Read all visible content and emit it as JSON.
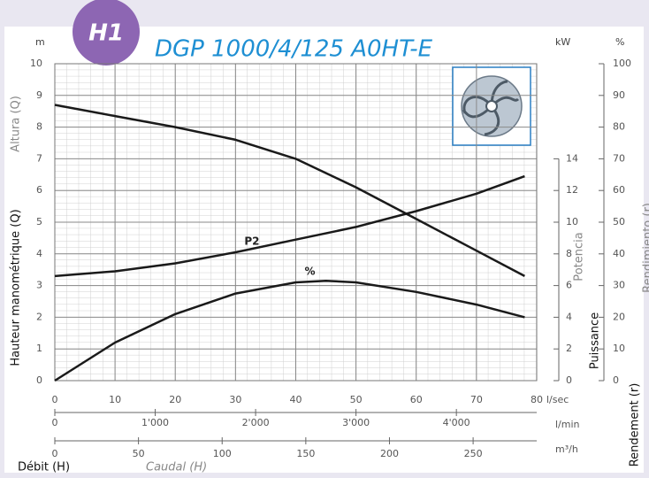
{
  "chart_data": {
    "type": "line",
    "badge": "H1",
    "title": "DGP 1000/4/125 A0HT-E",
    "xunit": "l/sec",
    "xlim": [
      0,
      80
    ],
    "xticks": [
      0,
      10,
      20,
      30,
      40,
      50,
      60,
      70,
      80
    ],
    "x2unit": "l/min",
    "x2lim": [
      0,
      4800
    ],
    "x2ticks": [
      0,
      {
        "value": 1000,
        "label": "1'000"
      },
      {
        "value": 2000,
        "label": "2'000"
      },
      {
        "value": 3000,
        "label": "3'000"
      },
      {
        "value": 4000,
        "label": "4'000"
      }
    ],
    "x3unit": "m³/h",
    "x3lim": [
      0,
      288
    ],
    "x3ticks": [
      0,
      50,
      100,
      150,
      200,
      250
    ],
    "xlabel": "Débit (H)",
    "xlabel_alt": "Caudal (H)",
    "yunit": "m",
    "ylabel": "Hauteur manométrique (Q)",
    "ylabel_alt": "Altura (Q)",
    "ylim": [
      0,
      10
    ],
    "yticks": [
      0,
      1,
      2,
      3,
      4,
      5,
      6,
      7,
      8,
      9,
      10
    ],
    "y2unit": "kW",
    "y2label": "Puissance",
    "y2label_alt": "Potencia",
    "y2lim": [
      0,
      20
    ],
    "y2ticks": [
      0,
      2,
      4,
      6,
      8,
      10,
      12,
      14
    ],
    "y3unit": "%",
    "y3label": "Rendement (r)",
    "y3label_alt": "Rendimiento (r)",
    "y3lim": [
      0,
      100
    ],
    "y3ticks": [
      0,
      10,
      20,
      30,
      40,
      50,
      60,
      70,
      80,
      90,
      100
    ],
    "grid": true,
    "series": [
      {
        "axis": "y",
        "color": "#1a1a1a",
        "x": [
          0,
          10,
          20,
          30,
          40,
          50,
          60,
          70,
          78
        ],
        "values": [
          8.7,
          8.35,
          8.0,
          7.6,
          7.0,
          6.1,
          5.1,
          4.1,
          3.3
        ]
      },
      {
        "name": "P2",
        "axis": "y2",
        "color": "#1a1a1a",
        "x": [
          0,
          10,
          20,
          30,
          40,
          50,
          60,
          70,
          78
        ],
        "values": [
          6.6,
          6.9,
          7.4,
          8.1,
          8.9,
          9.7,
          10.7,
          11.8,
          12.9
        ]
      },
      {
        "name": "%",
        "axis": "y3",
        "color": "#1a1a1a",
        "x": [
          0,
          10,
          20,
          30,
          40,
          45,
          50,
          60,
          70,
          78
        ],
        "values": [
          0,
          12,
          21,
          27.5,
          31,
          31.5,
          31,
          28,
          24,
          20
        ]
      }
    ]
  }
}
